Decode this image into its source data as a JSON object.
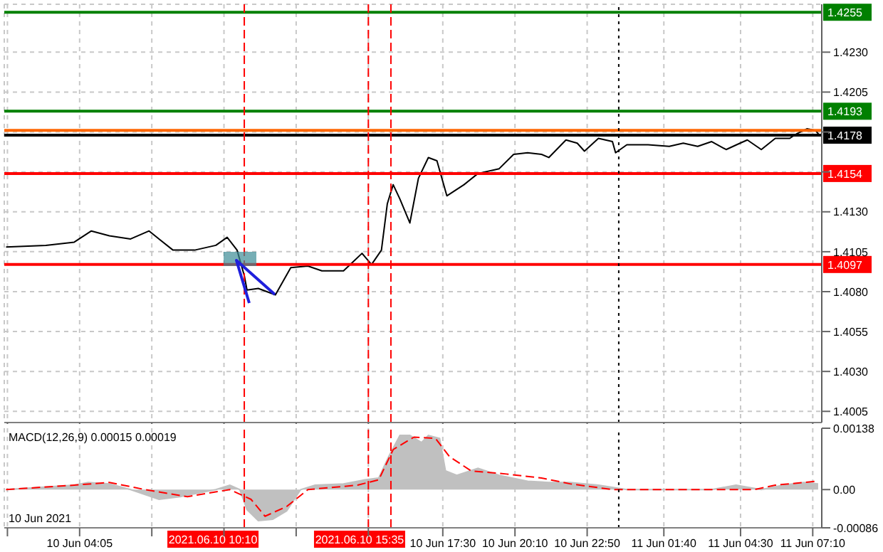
{
  "chart_data": [
    {
      "type": "line",
      "xlim": [
        "2021-06-10T01:18",
        "2021-06-11T07:30"
      ],
      "ylim": [
        1.3998,
        1.426
      ],
      "xticks": [
        {
          "value": "2021-06-10T01:25",
          "label": null
        },
        {
          "value": "2021-06-10T04:05",
          "label": null
        },
        {
          "value": "2021-06-10T06:45",
          "label": null
        },
        {
          "value": "2021-06-10T09:25",
          "label": null
        },
        {
          "value": "2021-06-10T12:05",
          "label": null
        },
        {
          "value": "2021-06-10T14:45",
          "label": null
        },
        {
          "value": "2021-06-10T17:30",
          "label": null
        },
        {
          "value": "2021-06-10T20:10",
          "label": null
        },
        {
          "value": "2021-06-10T22:50",
          "label": null
        },
        {
          "value": "2021-06-11T01:40",
          "label": null
        },
        {
          "value": "2021-06-11T04:30",
          "label": null
        },
        {
          "value": "2021-06-11T07:10",
          "label": null
        }
      ],
      "yticks": [
        {
          "value": 1.4005,
          "label": "1.4005"
        },
        {
          "value": 1.403,
          "label": "1.4030"
        },
        {
          "value": 1.4055,
          "label": "1.4055"
        },
        {
          "value": 1.408,
          "label": "1.4080"
        },
        {
          "value": 1.4105,
          "label": "1.4105"
        },
        {
          "value": 1.413,
          "label": "1.4130"
        },
        {
          "value": 1.4155,
          "label": null
        },
        {
          "value": 1.418,
          "label": null
        },
        {
          "value": 1.4205,
          "label": "1.4205"
        },
        {
          "value": 1.423,
          "label": "1.4230"
        }
      ],
      "tick_labels": "y",
      "grid": true,
      "legend": false,
      "marker": "none",
      "series": [
        {
          "color": "#000000",
          "x": [
            "2021-06-10T01:22",
            "2021-06-10T02:50",
            "2021-06-10T03:53",
            "2021-06-10T04:31",
            "2021-06-10T05:11",
            "2021-06-10T05:58",
            "2021-06-10T06:39",
            "2021-06-10T07:01",
            "2021-06-10T07:32",
            "2021-06-10T08:20",
            "2021-06-10T09:07",
            "2021-06-10T09:32",
            "2021-06-10T09:54",
            "2021-06-10T10:10",
            "2021-06-10T10:16",
            "2021-06-10T10:41",
            "2021-06-10T11:19",
            "2021-06-10T11:53",
            "2021-06-10T12:31",
            "2021-06-10T13:02",
            "2021-06-10T13:50",
            "2021-06-10T14:05",
            "2021-06-10T14:31",
            "2021-06-10T14:52",
            "2021-06-10T15:14",
            "2021-06-10T15:27",
            "2021-06-10T15:40",
            "2021-06-10T15:55",
            "2021-06-10T16:17",
            "2021-06-10T16:36",
            "2021-06-10T16:58",
            "2021-06-10T17:17",
            "2021-06-10T17:39",
            "2021-06-10T18:17",
            "2021-06-10T18:48",
            "2021-06-10T19:35",
            "2021-06-10T20:07",
            "2021-06-10T20:38",
            "2021-06-10T21:09",
            "2021-06-10T21:25",
            "2021-06-10T22:03",
            "2021-06-10T22:28",
            "2021-06-10T22:44",
            "2021-06-10T23:15",
            "2021-06-10T23:46",
            "2021-06-10T23:53",
            "2021-06-11T00:18",
            "2021-06-11T01:05",
            "2021-06-11T01:52",
            "2021-06-11T02:23",
            "2021-06-11T02:55",
            "2021-06-11T03:26",
            "2021-06-11T03:58",
            "2021-06-11T04:29",
            "2021-06-11T04:45",
            "2021-06-11T05:16",
            "2021-06-11T05:47",
            "2021-06-11T06:19",
            "2021-06-11T06:35",
            "2021-06-11T06:57",
            "2021-06-11T07:16",
            "2021-06-11T07:25"
          ],
          "values": [
            1.4108,
            1.4109,
            1.4111,
            1.4118,
            1.4115,
            1.4113,
            1.4118,
            1.4113,
            1.4106,
            1.4106,
            1.4109,
            1.4114,
            1.4106,
            1.409,
            1.4081,
            1.4082,
            1.4078,
            1.4095,
            1.4096,
            1.4093,
            1.4093,
            1.4097,
            1.4104,
            1.4097,
            1.4106,
            1.4135,
            1.4147,
            1.4138,
            1.4123,
            1.4151,
            1.4164,
            1.4162,
            1.414,
            1.4147,
            1.4154,
            1.4157,
            1.4166,
            1.4167,
            1.4166,
            1.4164,
            1.4175,
            1.4173,
            1.4168,
            1.4176,
            1.4174,
            1.4167,
            1.4172,
            1.4172,
            1.4171,
            1.4173,
            1.4171,
            1.4174,
            1.4169,
            1.4173,
            1.4175,
            1.4169,
            1.4176,
            1.4176,
            1.4179,
            1.4182,
            1.4181,
            1.4178
          ]
        }
      ],
      "ref_lines": [
        {
          "axis": "y",
          "value": 1.4255,
          "label": "1.4255",
          "color": "#008000",
          "line_style": "solid"
        },
        {
          "axis": "y",
          "value": 1.4193,
          "label": "1.4193",
          "color": "#008000",
          "line_style": "solid"
        },
        {
          "axis": "y",
          "value": 1.4181,
          "label": null,
          "color": "#ff6600",
          "line_style": "solid"
        },
        {
          "axis": "y",
          "value": 1.4178,
          "label": "1.4178",
          "color": "#000000",
          "line_style": "solid"
        },
        {
          "axis": "y",
          "value": 1.4154,
          "label": "1.4154",
          "color": "#ff0000",
          "line_style": "solid"
        },
        {
          "axis": "y",
          "value": 1.4097,
          "label": "1.4097",
          "color": "#ff0000",
          "line_style": "solid"
        },
        {
          "axis": "x",
          "value": "2021-06-10T10:10",
          "label": null,
          "color": "#ff0000",
          "line_style": "dashed"
        },
        {
          "axis": "x",
          "value": "2021-06-10T14:45",
          "label": null,
          "color": "#ff0000",
          "line_style": "dashed"
        },
        {
          "axis": "x",
          "value": "2021-06-10T15:35",
          "label": null,
          "color": "#ff0000",
          "line_style": "dashed"
        },
        {
          "axis": "x",
          "value": "2021-06-11T00:00",
          "label": null,
          "color": "#000000",
          "line_style": "dotted"
        }
      ]
    },
    {
      "type": "area",
      "title": "MACD(12,26,9) 0.00015 0.00019",
      "xlim": [
        "2021-06-10T01:18",
        "2021-06-11T07:30"
      ],
      "ylim": [
        -0.00086,
        0.00138
      ],
      "annotations": [
        "10 Jun 2021"
      ],
      "xticks": [
        {
          "value": "2021-06-10T01:25",
          "label": null
        },
        {
          "value": "2021-06-10T04:05",
          "label": "10 Jun 04:05"
        },
        {
          "value": "2021-06-10T06:45",
          "label": null
        },
        {
          "value": "2021-06-10T09:25",
          "label": null
        },
        {
          "value": "2021-06-10T12:05",
          "label": null
        },
        {
          "value": "2021-06-10T14:45",
          "label": null
        },
        {
          "value": "2021-06-10T17:30",
          "label": "10 Jun 17:30"
        },
        {
          "value": "2021-06-10T20:10",
          "label": "10 Jun 20:10"
        },
        {
          "value": "2021-06-10T22:50",
          "label": "10 Jun 22:50"
        },
        {
          "value": "2021-06-11T01:40",
          "label": "11 Jun 01:40"
        },
        {
          "value": "2021-06-11T04:30",
          "label": "11 Jun 04:30"
        },
        {
          "value": "2021-06-11T07:10",
          "label": "11 Jun 07:10"
        }
      ],
      "yticks": [
        {
          "value": -0.00086,
          "label": "-0.00086"
        },
        {
          "value": 0,
          "label": "0.00"
        },
        {
          "value": 0.00138,
          "label": "0.00138"
        }
      ],
      "grid": "x",
      "legend": false,
      "marker": "none",
      "series": [
        {
          "color": "#c0c0c0",
          "x": [
            "2021-06-10T01:22",
            "2021-06-10T03:53",
            "2021-06-10T04:24",
            "2021-06-10T05:11",
            "2021-06-10T05:58",
            "2021-06-10T07:01",
            "2021-06-10T07:48",
            "2021-06-10T09:07",
            "2021-06-10T09:38",
            "2021-06-10T10:00",
            "2021-06-10T10:16",
            "2021-06-10T10:41",
            "2021-06-10T11:13",
            "2021-06-10T11:44",
            "2021-06-10T12:15",
            "2021-06-10T12:47",
            "2021-06-10T13:50",
            "2021-06-10T14:37",
            "2021-06-10T15:08",
            "2021-06-10T15:30",
            "2021-06-10T15:55",
            "2021-06-10T16:17",
            "2021-06-10T16:43",
            "2021-06-10T16:58",
            "2021-06-10T17:23",
            "2021-06-10T17:36",
            "2021-06-10T18:01",
            "2021-06-10T18:48",
            "2021-06-10T19:35",
            "2021-06-10T20:38",
            "2021-06-10T21:25",
            "2021-06-10T22:12",
            "2021-06-10T23:15",
            "2021-06-11T00:18",
            "2021-06-11T01:20",
            "2021-06-11T02:23",
            "2021-06-11T03:26",
            "2021-06-11T04:20",
            "2021-06-11T05:16",
            "2021-06-11T06:04",
            "2021-06-11T06:50",
            "2021-06-11T07:22"
          ],
          "values": [
            0,
            0.0001,
            0.00016,
            0.00013,
            0,
            -0.00022,
            -0.00016,
            0,
            0.0001,
            0,
            -0.00045,
            -0.0007,
            -0.00067,
            -0.00048,
            0,
            0.0001,
            0.00013,
            0.00022,
            0.00026,
            0.00074,
            0.00122,
            0.00122,
            0.00106,
            0.00122,
            0.00115,
            0.00042,
            0.00032,
            0.00048,
            0.00032,
            0.00019,
            0.00016,
            0.00016,
            0.0001,
            0,
            0,
            0,
            0,
            0.0001,
            0,
            0.0001,
            0.00016,
            0.00013
          ]
        },
        {
          "type": "line",
          "color": "#ff0000",
          "line_style": "dashed",
          "x": [
            "2021-06-10T01:22",
            "2021-06-10T03:53",
            "2021-06-10T05:11",
            "2021-06-10T06:30",
            "2021-06-10T08:04",
            "2021-06-10T09:38",
            "2021-06-10T10:25",
            "2021-06-10T10:56",
            "2021-06-10T11:44",
            "2021-06-10T12:31",
            "2021-06-10T14:21",
            "2021-06-10T15:08",
            "2021-06-10T15:40",
            "2021-06-10T16:26",
            "2021-06-10T17:14",
            "2021-06-10T17:45",
            "2021-06-10T18:33",
            "2021-06-10T19:51",
            "2021-06-10T21:09",
            "2021-06-10T22:12",
            "2021-06-10T23:46",
            "2021-06-11T01:20",
            "2021-06-11T03:26",
            "2021-06-11T05:01",
            "2021-06-11T05:47",
            "2021-06-11T07:22"
          ],
          "values": [
            0,
            0.0001,
            0.00016,
            0,
            -0.00016,
            0,
            -0.00022,
            -0.0006,
            -0.00038,
            0,
            0.0001,
            0.00022,
            0.0009,
            0.00118,
            0.00115,
            0.00074,
            0.00042,
            0.00035,
            0.00026,
            0.00013,
            0,
            0,
            0,
            0,
            0.0001,
            0.00019
          ]
        }
      ],
      "ref_lines": [
        {
          "axis": "x",
          "value": "2021-06-10T10:10",
          "label": "2021.06.10 10:10",
          "color": "#ff0000",
          "line_style": "dashed"
        },
        {
          "axis": "x",
          "value": "2021-06-10T14:45",
          "label": null,
          "color": "#ff0000",
          "line_style": "dashed"
        },
        {
          "axis": "x",
          "value": "2021-06-10T15:35",
          "label": "2021.06.10 15:35",
          "color": "#ff0000",
          "line_style": "dashed"
        },
        {
          "axis": "x",
          "value": "2021-06-11T00:00",
          "label": null,
          "color": "#000000",
          "line_style": "dotted"
        }
      ]
    }
  ]
}
